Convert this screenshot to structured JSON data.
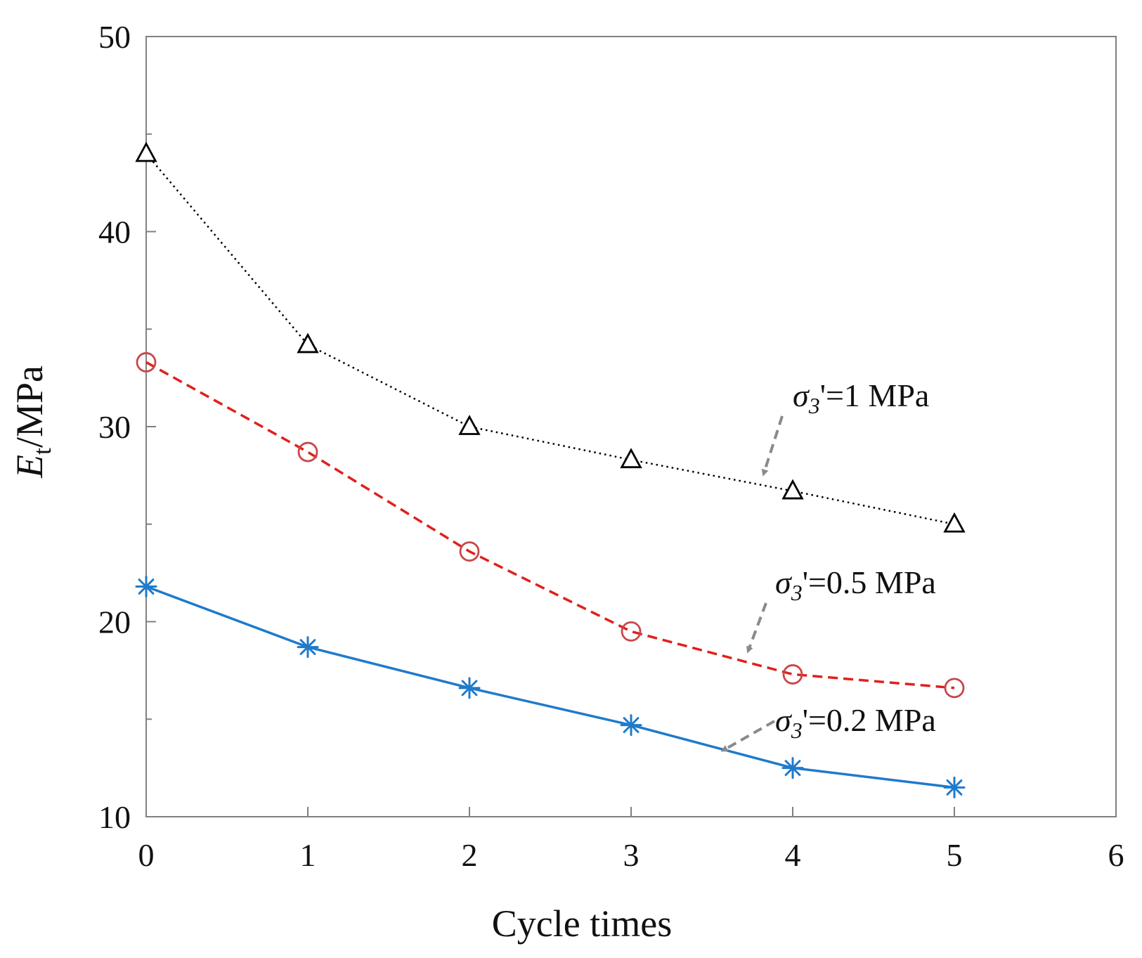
{
  "chart_data": {
    "type": "line",
    "title": "",
    "xlabel": "Cycle times",
    "ylabel": "E",
    "ylabel_subscript": "t",
    "ylabel_unit": "/MPa",
    "xlim": [
      0,
      6
    ],
    "ylim": [
      10,
      50
    ],
    "x_ticks": [
      0,
      1,
      2,
      3,
      4,
      5,
      6
    ],
    "y_ticks": [
      10,
      20,
      30,
      40,
      50
    ],
    "grid": false,
    "legend": "none",
    "series": [
      {
        "name": "σ3'=1 MPa",
        "style": "dotted",
        "marker": "triangle",
        "color": "#000000",
        "x": [
          0,
          1,
          2,
          3,
          4,
          5
        ],
        "y": [
          44.0,
          34.2,
          30.0,
          28.3,
          26.7,
          25.0
        ]
      },
      {
        "name": "σ3'=0.5 MPa",
        "style": "dashed",
        "marker": "circle",
        "color": "#e0201b",
        "marker_color": "#c8474a",
        "x": [
          0,
          1,
          2,
          3,
          4,
          5
        ],
        "y": [
          33.3,
          28.7,
          23.6,
          19.5,
          17.3,
          16.6
        ]
      },
      {
        "name": "σ3'=0.2 MPa",
        "style": "solid",
        "marker": "asterisk",
        "color": "#1f7acb",
        "x": [
          0,
          1,
          2,
          3,
          4,
          5
        ],
        "y": [
          21.8,
          18.7,
          16.6,
          14.7,
          12.5,
          11.5
        ]
      }
    ],
    "annotations": [
      {
        "sym": "σ",
        "sub": "3",
        "rest": "'=1  MPa"
      },
      {
        "sym": "σ",
        "sub": "3",
        "rest": "'=0.5  MPa"
      },
      {
        "sym": "σ",
        "sub": "3",
        "rest": "'=0.2  MPa"
      }
    ],
    "arrow_color": "#8a8a8a"
  }
}
